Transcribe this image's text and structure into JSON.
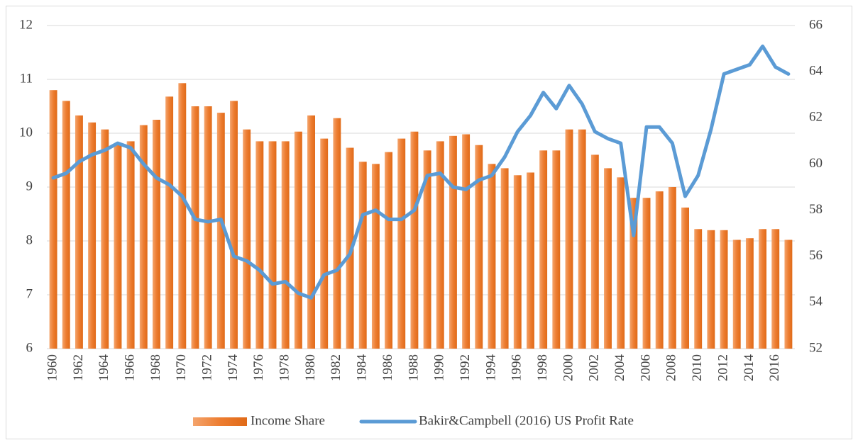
{
  "chart_data": {
    "type": "bar",
    "categories": [
      "1960",
      null,
      "1962",
      null,
      "1964",
      null,
      "1966",
      null,
      "1968",
      null,
      "1970",
      null,
      "1972",
      null,
      "1974",
      null,
      "1976",
      null,
      "1978",
      null,
      "1980",
      null,
      "1982",
      null,
      "1984",
      null,
      "1986",
      null,
      "1988",
      null,
      "1990",
      null,
      "1992",
      null,
      "1994",
      null,
      "1996",
      null,
      "1998",
      null,
      "2000",
      null,
      "2002",
      null,
      "2004",
      null,
      "2006",
      null,
      "2008",
      null,
      "2010",
      null,
      "2012",
      null,
      "2014",
      null,
      "2016",
      null
    ],
    "series": [
      {
        "name": "Income Share",
        "type": "bar",
        "color": "#ed7d31",
        "values": [
          10.8,
          10.6,
          10.33,
          10.2,
          10.07,
          9.8,
          9.85,
          10.15,
          10.25,
          10.68,
          10.93,
          10.5,
          10.5,
          10.38,
          10.6,
          10.07,
          9.85,
          9.85,
          9.85,
          10.03,
          10.33,
          9.9,
          10.28,
          9.73,
          9.47,
          9.43,
          9.65,
          9.9,
          10.03,
          9.68,
          9.85,
          9.95,
          9.98,
          9.78,
          9.43,
          9.35,
          9.22,
          9.27,
          9.68,
          9.68,
          10.07,
          10.07,
          9.6,
          9.35,
          9.18,
          8.8,
          8.8,
          8.92,
          9.0,
          8.62,
          8.22,
          8.2,
          8.2,
          8.02,
          8.05,
          8.22,
          8.22,
          8.02
        ]
      },
      {
        "name": "Bakir&Campbell (2016) US Profit Rate",
        "type": "line",
        "axis": "y2",
        "color": "#5b9bd5",
        "values": [
          59.4,
          59.6,
          60.1,
          60.4,
          60.6,
          60.9,
          60.7,
          60.0,
          59.4,
          59.1,
          58.6,
          57.6,
          57.5,
          57.6,
          56.0,
          55.8,
          55.4,
          54.8,
          54.9,
          54.4,
          54.2,
          55.2,
          55.4,
          56.1,
          57.8,
          58.0,
          57.6,
          57.6,
          58.0,
          59.5,
          59.6,
          59.0,
          58.9,
          59.3,
          59.5,
          60.3,
          61.4,
          62.1,
          63.1,
          62.4,
          63.4,
          62.6,
          61.4,
          61.1,
          60.9,
          56.9,
          61.6,
          61.6,
          60.9,
          58.6,
          59.5,
          61.5,
          63.9,
          64.1,
          64.3,
          65.1,
          64.2,
          63.9
        ]
      }
    ],
    "ylim": [
      6,
      12
    ],
    "yticks": [
      6,
      7,
      8,
      9,
      10,
      11,
      12
    ],
    "y2lim": [
      52,
      66
    ],
    "y2ticks": [
      52,
      54,
      56,
      58,
      60,
      62,
      64,
      66
    ],
    "grid": true,
    "legend": "bottom"
  }
}
